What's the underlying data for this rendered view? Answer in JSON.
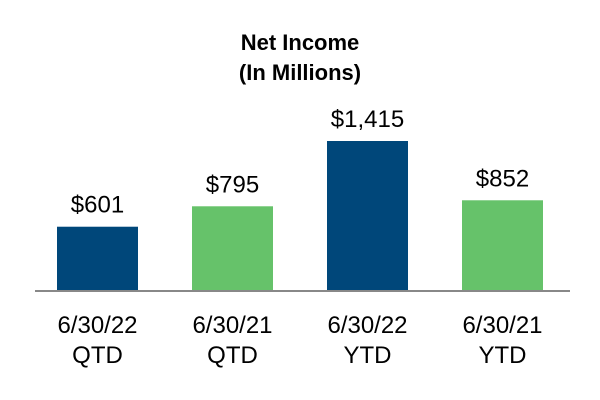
{
  "chart_data": {
    "type": "bar",
    "title": [
      "Net Income",
      "(In Millions)"
    ],
    "categories": [
      [
        "6/30/22",
        "QTD"
      ],
      [
        "6/30/21",
        "QTD"
      ],
      [
        "6/30/22",
        "YTD"
      ],
      [
        "6/30/21",
        "YTD"
      ]
    ],
    "values": [
      601,
      795,
      1415,
      852
    ],
    "data_labels": [
      "$601",
      "$795",
      "$1,415",
      "$852"
    ],
    "bar_colors": [
      "#00477a",
      "#66c26a",
      "#00477a",
      "#66c26a"
    ],
    "xlabel": "",
    "ylabel": "",
    "ylim": [
      0,
      1500
    ],
    "grid": false,
    "legend": "none",
    "axis_color": "#888888"
  }
}
